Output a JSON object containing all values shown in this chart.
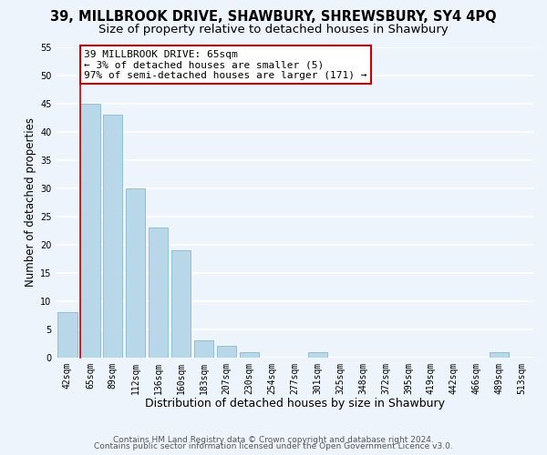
{
  "title": "39, MILLBROOK DRIVE, SHAWBURY, SHREWSBURY, SY4 4PQ",
  "subtitle": "Size of property relative to detached houses in Shawbury",
  "xlabel": "Distribution of detached houses by size in Shawbury",
  "ylabel": "Number of detached properties",
  "bin_labels": [
    "42sqm",
    "65sqm",
    "89sqm",
    "112sqm",
    "136sqm",
    "160sqm",
    "183sqm",
    "207sqm",
    "230sqm",
    "254sqm",
    "277sqm",
    "301sqm",
    "325sqm",
    "348sqm",
    "372sqm",
    "395sqm",
    "419sqm",
    "442sqm",
    "466sqm",
    "489sqm",
    "513sqm"
  ],
  "bar_heights": [
    8,
    45,
    43,
    30,
    23,
    19,
    3,
    2,
    1,
    0,
    0,
    1,
    0,
    0,
    0,
    0,
    0,
    0,
    0,
    1,
    0
  ],
  "highlight_bar_index": 1,
  "bar_color": "#b8d8ea",
  "bar_edge_color": "#88b8d0",
  "highlight_line_color": "#cc0000",
  "annotation_line1": "39 MILLBROOK DRIVE: 65sqm",
  "annotation_line2": "← 3% of detached houses are smaller (5)",
  "annotation_line3": "97% of semi-detached houses are larger (171) →",
  "annotation_box_color": "#ffffff",
  "annotation_box_edge_color": "#cc0000",
  "ylim": [
    0,
    55
  ],
  "yticks": [
    0,
    5,
    10,
    15,
    20,
    25,
    30,
    35,
    40,
    45,
    50,
    55
  ],
  "footer1": "Contains HM Land Registry data © Crown copyright and database right 2024.",
  "footer2": "Contains public sector information licensed under the Open Government Licence v3.0.",
  "background_color": "#eef4fb",
  "grid_color": "#ffffff",
  "title_fontsize": 10.5,
  "subtitle_fontsize": 9.5,
  "xlabel_fontsize": 9,
  "ylabel_fontsize": 8.5,
  "tick_fontsize": 7,
  "annotation_fontsize": 8,
  "footer_fontsize": 6.5
}
